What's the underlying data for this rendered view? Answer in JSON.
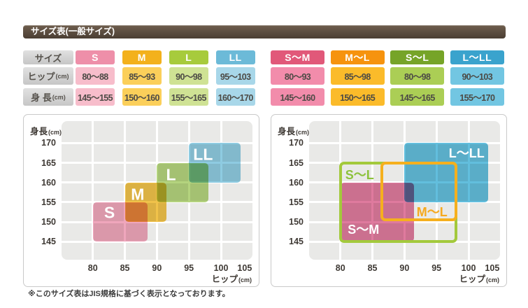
{
  "page": {
    "title": "サイズ表(一般サイズ)",
    "footnote": "※このサイズ表はJIS規格に基づく表示となっております。"
  },
  "colors": {
    "title_bar_top": "#6f5e4e",
    "title_bar_bottom": "#4a3e33",
    "grid_bg": "#e9e9e7",
    "grid_line": "#ffffff",
    "panel_border": "#c9c9c9",
    "tick_text": "#3f3a35",
    "value_text": "#4c4a45"
  },
  "size_tables": {
    "row_headers": [
      {
        "label": "サイズ",
        "unit": ""
      },
      {
        "label": "ヒップ",
        "unit": "(cm)"
      },
      {
        "label": "身 長",
        "unit": "(cm)"
      }
    ],
    "tables": [
      {
        "name": "standard-sizes",
        "columns": [
          {
            "size": "S",
            "hip": "80〜88",
            "height": "145〜155",
            "header_color": "#ee8fa9",
            "cell_color": "#f7bdcb"
          },
          {
            "size": "M",
            "hip": "85〜93",
            "height": "150〜160",
            "header_color": "#f3b11c",
            "cell_color": "#fbcf5a"
          },
          {
            "size": "L",
            "hip": "90〜98",
            "height": "155〜165",
            "header_color": "#a7cb3c",
            "cell_color": "#cfe294"
          },
          {
            "size": "LL",
            "hip": "95〜103",
            "height": "160〜170",
            "header_color": "#6cbad8",
            "cell_color": "#a8d7e9"
          }
        ]
      },
      {
        "name": "range-sizes",
        "columns": [
          {
            "size": "S〜M",
            "hip": "80〜93",
            "height": "145〜160",
            "header_color": "#e15879",
            "cell_color": "#f28cab"
          },
          {
            "size": "M〜L",
            "hip": "85〜98",
            "height": "150〜165",
            "header_color": "#f6930e",
            "cell_color": "#fbbb2a"
          },
          {
            "size": "S〜L",
            "hip": "80〜98",
            "height": "145〜165",
            "header_color": "#76a428",
            "cell_color": "#abce55"
          },
          {
            "size": "L〜LL",
            "hip": "90〜103",
            "height": "155〜170",
            "header_color": "#3aa3cd",
            "cell_color": "#72c6e2"
          }
        ]
      }
    ]
  },
  "chart_data": [
    {
      "type": "regions",
      "name": "standard-sizes-plot",
      "xlabel": {
        "text": "ヒップ",
        "unit": "(cm)"
      },
      "ylabel": {
        "text": "身長",
        "unit": "(cm)"
      },
      "xlim": [
        75,
        105
      ],
      "ylim": [
        140,
        176
      ],
      "x_ticks": [
        80,
        85,
        90,
        95,
        100,
        105
      ],
      "y_ticks": [
        170,
        165,
        160,
        155,
        150,
        145
      ],
      "grid": true,
      "grid_step": 5,
      "regions": [
        {
          "label": "S",
          "style": "fill",
          "color": "#efa6bc",
          "hip": [
            80,
            88
          ],
          "height": [
            145,
            155
          ],
          "draw_hip": [
            80,
            88.5
          ],
          "label_at": [
            82.6,
            152.3
          ],
          "label_color": "#ffffff"
        },
        {
          "label": "M",
          "style": "fill",
          "color": "#f0c24a",
          "hip": [
            85,
            93
          ],
          "height": [
            150,
            160
          ],
          "draw_hip": [
            85,
            91.5
          ],
          "label_at": [
            87.0,
            157.0
          ],
          "label_color": "#ffffff"
        },
        {
          "label": "L",
          "style": "fill",
          "color": "#b4d37e",
          "hip": [
            90,
            98
          ],
          "height": [
            155,
            165
          ],
          "label_at": [
            92.2,
            161.9
          ],
          "label_color": "#ffffff"
        },
        {
          "label": "LL",
          "style": "fill",
          "color": "#8ecbe1",
          "hip": [
            95,
            103
          ],
          "height": [
            160,
            170
          ],
          "label_at": [
            97.2,
            167.1
          ],
          "label_color": "#ffffff"
        }
      ]
    },
    {
      "type": "regions",
      "name": "range-sizes-plot",
      "xlabel": {
        "text": "ヒップ",
        "unit": "(cm)"
      },
      "ylabel": {
        "text": "身長",
        "unit": "(cm)"
      },
      "xlim": [
        75,
        105
      ],
      "ylim": [
        140,
        176
      ],
      "x_ticks": [
        80,
        85,
        90,
        95,
        100,
        105
      ],
      "y_ticks": [
        170,
        165,
        160,
        155,
        150,
        145
      ],
      "grid": true,
      "grid_step": 5,
      "regions": [
        {
          "label": "L〜LL",
          "style": "fill",
          "color": "#62bedd",
          "hip": [
            90,
            103
          ],
          "height": [
            155,
            170
          ],
          "label_at": [
            99.7,
            167.5
          ],
          "label_color": "#ffffff"
        },
        {
          "label": "S〜M",
          "style": "fill",
          "color": "#df7a9e",
          "hip": [
            80,
            93
          ],
          "height": [
            145,
            160
          ],
          "draw_hip": [
            80,
            91.5
          ],
          "label_at": [
            83.6,
            148.3
          ],
          "label_color": "#ffffff"
        },
        {
          "label": "S〜L",
          "style": "stroke",
          "color": "#a3c93c",
          "hip": [
            80,
            98
          ],
          "height": [
            145,
            165
          ],
          "label_at": [
            83.0,
            162.0
          ],
          "label_color": "#8cc23b"
        },
        {
          "label": "M〜L",
          "style": "stroke",
          "color": "#f5b01e",
          "hip": [
            85,
            98
          ],
          "height": [
            150,
            165
          ],
          "draw_hip": [
            86.5,
            98
          ],
          "draw_height": [
            150.5,
            165
          ],
          "label_at": [
            94.3,
            152.7
          ],
          "label_color": "#f5a91f"
        }
      ]
    }
  ]
}
